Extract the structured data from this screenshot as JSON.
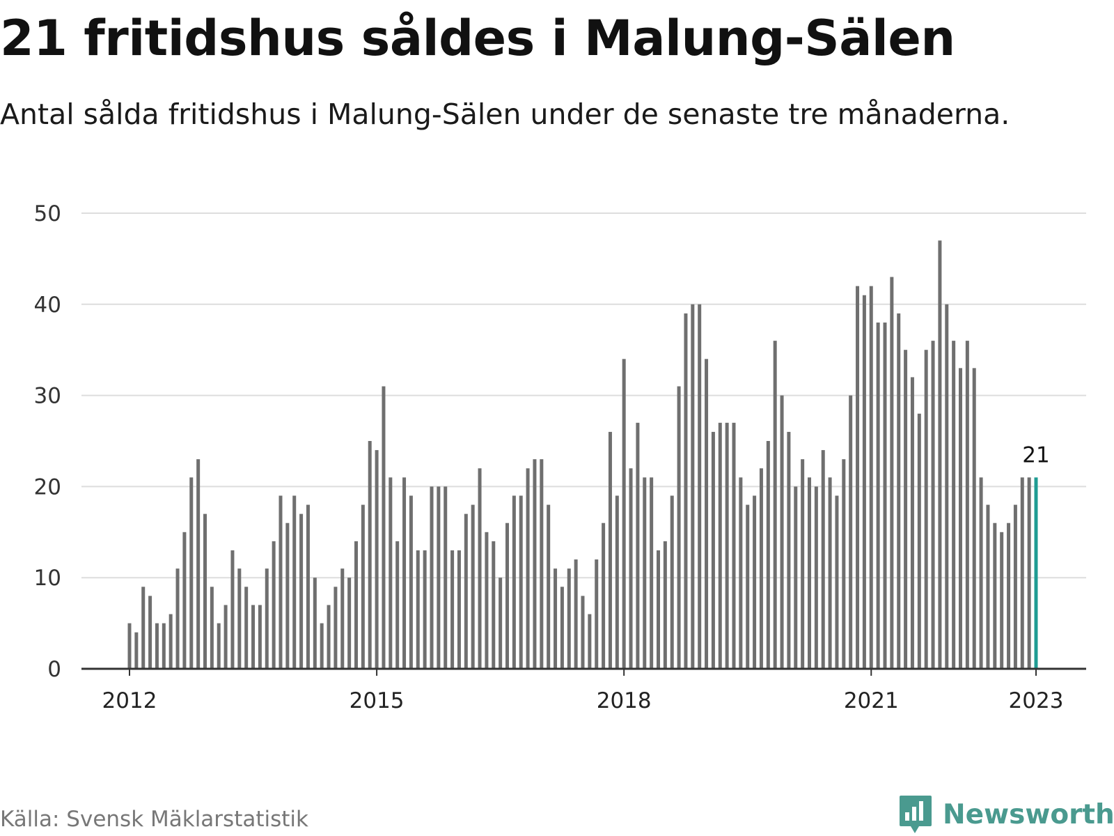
{
  "header": {
    "title": "21 fritidshus såldes i Malung-Sälen",
    "subtitle": "Antal sålda fritidshus i Malung-Sälen under de senaste tre månaderna."
  },
  "footer": {
    "source": "Källa: Svensk Mäklarstatistik",
    "brand": "Newsworthy"
  },
  "colors": {
    "bar": "#6f6f6f",
    "highlight": "#1f9c93",
    "grid": "#dddddd",
    "axis": "#333333",
    "brand": "#4a9a8f"
  },
  "icons": {
    "brand_logo": "bar-chart-speech-bubble-icon"
  },
  "chart_data": {
    "type": "bar",
    "title": "21 fritidshus såldes i Malung-Sälen",
    "subtitle": "Antal sålda fritidshus i Malung-Sälen under de senaste tre månaderna.",
    "xlabel": "",
    "ylabel": "",
    "ylim": [
      0,
      50
    ],
    "yticks": [
      0,
      10,
      20,
      30,
      40,
      50
    ],
    "xticks": [
      "2012",
      "2015",
      "2018",
      "2021",
      "2023"
    ],
    "grid": true,
    "x_start": "2012-01",
    "x_end": "2023-01",
    "values": [
      5,
      4,
      9,
      8,
      5,
      5,
      6,
      11,
      15,
      21,
      23,
      17,
      9,
      5,
      7,
      13,
      11,
      9,
      7,
      7,
      11,
      14,
      19,
      16,
      19,
      17,
      18,
      10,
      5,
      7,
      9,
      11,
      10,
      14,
      18,
      25,
      24,
      31,
      21,
      14,
      21,
      19,
      13,
      13,
      20,
      20,
      20,
      13,
      13,
      17,
      18,
      22,
      15,
      14,
      10,
      16,
      19,
      19,
      22,
      23,
      23,
      18,
      11,
      9,
      11,
      12,
      8,
      6,
      12,
      16,
      26,
      19,
      34,
      22,
      27,
      21,
      21,
      13,
      14,
      19,
      31,
      39,
      40,
      40,
      34,
      26,
      27,
      27,
      27,
      21,
      18,
      19,
      22,
      25,
      36,
      30,
      26,
      20,
      23,
      21,
      20,
      24,
      21,
      19,
      23,
      30,
      42,
      41,
      42,
      38,
      38,
      43,
      39,
      35,
      32,
      28,
      35,
      36,
      47,
      40,
      36,
      33,
      36,
      33,
      21,
      18,
      16,
      15,
      16,
      18,
      21,
      21,
      21
    ],
    "highlight_last": true,
    "annotations": [
      {
        "label": "21"
      }
    ]
  }
}
